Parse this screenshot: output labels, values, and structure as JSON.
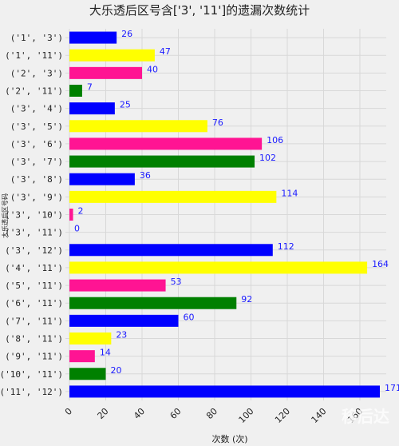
{
  "chart_data": {
    "type": "bar",
    "orientation": "horizontal",
    "title": "大乐透后区号含['3', '11']的遗漏次数统计",
    "xlabel": "次数 (次)",
    "ylabel": "大乐透后区号码",
    "xlim": [
      0,
      171
    ],
    "xticks": [
      "0",
      "20",
      "40",
      "60",
      "80",
      "100",
      "120",
      "140",
      "160"
    ],
    "grid": true,
    "categories": [
      "('1', '3')",
      "('1', '11')",
      "('2', '3')",
      "('2', '11')",
      "('3', '4')",
      "('3', '5')",
      "('3', '6')",
      "('3', '7')",
      "('3', '8')",
      "('3', '9')",
      "('3', '10')",
      "('3', '11')",
      "('3', '12')",
      "('4', '11')",
      "('5', '11')",
      "('6', '11')",
      "('7', '11')",
      "('8', '11')",
      "('9', '11')",
      "('10', '11')",
      "('11', '12')"
    ],
    "values": [
      26,
      47,
      40,
      7,
      25,
      76,
      106,
      102,
      36,
      114,
      2,
      0,
      112,
      164,
      53,
      92,
      60,
      23,
      14,
      20,
      171
    ],
    "colors": [
      "#0000ff",
      "#ffff00",
      "#ff1493",
      "#008000",
      "#0000ff",
      "#ffff00",
      "#ff1493",
      "#008000",
      "#0000ff",
      "#ffff00",
      "#ff1493",
      "#008000",
      "#0000ff",
      "#ffff00",
      "#ff1493",
      "#008000",
      "#0000ff",
      "#ffff00",
      "#ff1493",
      "#008000",
      "#0000ff"
    ],
    "value_label_color": "#1a1aff"
  },
  "watermark": "移后达"
}
